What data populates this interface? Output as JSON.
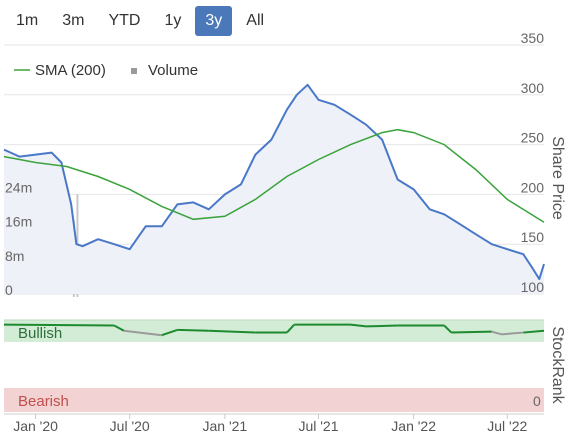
{
  "range_buttons": [
    {
      "label": "1m",
      "active": false
    },
    {
      "label": "3m",
      "active": false
    },
    {
      "label": "YTD",
      "active": false
    },
    {
      "label": "1y",
      "active": false
    },
    {
      "label": "3y",
      "active": true
    },
    {
      "label": "All",
      "active": false
    }
  ],
  "legend": {
    "sma_label": "SMA (200)",
    "volume_label": "Volume"
  },
  "right_axis_title": "Share Price",
  "stockrank_title": "StockRank",
  "bullish_label": "Bullish",
  "bearish_label": "Bearish",
  "bearish_value": "0",
  "colors": {
    "price": "#4a78c8",
    "sma": "#3aa33a",
    "volume": "#c8c8c8",
    "bullish_band": "#d3ecd6",
    "bearish_band": "#f2d2d2",
    "rank_good": "#1e8a2e",
    "rank_neutral": "#9a9a9a",
    "active_button": "#4a78b8"
  },
  "chart_data": {
    "type": "line",
    "x_ticks": [
      "Jan '20",
      "Jul '20",
      "Jan '21",
      "Jul '21",
      "Jan '22",
      "Jul '22"
    ],
    "price_axis": {
      "label": "Share Price",
      "ticks": [
        100,
        150,
        200,
        250,
        300,
        350
      ],
      "range": [
        100,
        350
      ]
    },
    "volume_axis": {
      "ticks": [
        "0",
        "8m",
        "16m",
        "24m"
      ],
      "range": [
        0,
        32
      ]
    },
    "series": [
      {
        "name": "Share price",
        "x": [
          "2019-11-01",
          "2019-12-01",
          "2020-01-01",
          "2020-02-01",
          "2020-02-20",
          "2020-03-10",
          "2020-03-20",
          "2020-04-01",
          "2020-05-01",
          "2020-06-01",
          "2020-07-01",
          "2020-08-01",
          "2020-09-01",
          "2020-10-01",
          "2020-11-01",
          "2020-12-01",
          "2021-01-01",
          "2021-02-01",
          "2021-03-01",
          "2021-04-01",
          "2021-05-01",
          "2021-05-20",
          "2021-06-10",
          "2021-07-01",
          "2021-08-01",
          "2021-09-01",
          "2021-10-01",
          "2021-11-01",
          "2021-12-01",
          "2022-01-01",
          "2022-02-01",
          "2022-03-01",
          "2022-04-01",
          "2022-05-01",
          "2022-06-01",
          "2022-07-01",
          "2022-08-01",
          "2022-08-20",
          "2022-09-01",
          "2022-09-10"
        ],
        "y": [
          245,
          238,
          240,
          242,
          232,
          190,
          150,
          148,
          155,
          150,
          145,
          168,
          168,
          190,
          192,
          185,
          200,
          210,
          240,
          255,
          285,
          300,
          310,
          295,
          290,
          280,
          270,
          255,
          215,
          205,
          185,
          180,
          170,
          160,
          150,
          145,
          140,
          125,
          115,
          130
        ]
      },
      {
        "name": "SMA (200)",
        "x": [
          "2019-11-01",
          "2020-01-01",
          "2020-03-01",
          "2020-05-01",
          "2020-07-01",
          "2020-09-01",
          "2020-11-01",
          "2021-01-01",
          "2021-03-01",
          "2021-05-01",
          "2021-07-01",
          "2021-09-01",
          "2021-11-01",
          "2021-12-01",
          "2022-01-01",
          "2022-03-01",
          "2022-05-01",
          "2022-07-01",
          "2022-09-10"
        ],
        "y": [
          238,
          232,
          228,
          218,
          205,
          188,
          175,
          178,
          195,
          218,
          235,
          250,
          262,
          265,
          262,
          250,
          225,
          195,
          172
        ]
      },
      {
        "name": "Volume",
        "x": [
          "2020-03-15",
          "2020-03-22"
        ],
        "y": [
          18,
          24
        ]
      }
    ],
    "stockrank": {
      "label_top": "Bullish",
      "label_bottom": "Bearish",
      "bottom_value": "0",
      "x": [
        "2019-11-01",
        "2020-06-01",
        "2020-06-20",
        "2020-09-01",
        "2020-10-01",
        "2020-12-01",
        "2021-03-01",
        "2021-05-01",
        "2021-05-15",
        "2021-09-01",
        "2021-10-01",
        "2021-12-01",
        "2022-03-01",
        "2022-03-15",
        "2022-06-01",
        "2022-06-20",
        "2022-08-01",
        "2022-09-10"
      ],
      "y": [
        97,
        96,
        90,
        85,
        91,
        90,
        88,
        88,
        97,
        97,
        95,
        96,
        96,
        88,
        89,
        86,
        88,
        90
      ]
    }
  }
}
